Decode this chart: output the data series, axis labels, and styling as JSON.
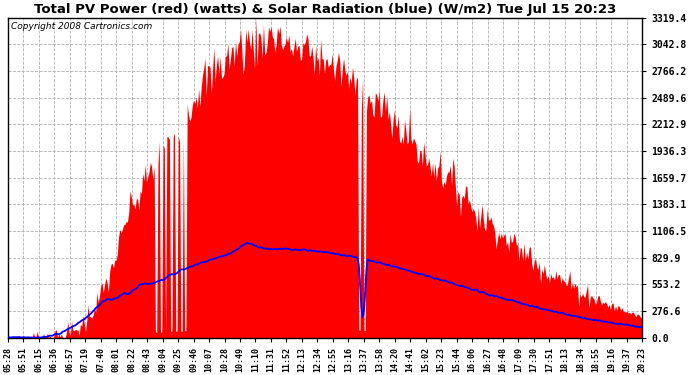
{
  "title": "Total PV Power (red) (watts) & Solar Radiation (blue) (W/m2) Tue Jul 15 20:23",
  "copyright": "Copyright 2008 Cartronics.com",
  "yticks": [
    0.0,
    276.6,
    553.2,
    829.9,
    1106.5,
    1383.1,
    1659.7,
    1936.3,
    2212.9,
    2489.6,
    2766.2,
    3042.8,
    3319.4
  ],
  "ymax": 3319.4,
  "bg_color": "#ffffff",
  "plot_bg_color": "#ffffff",
  "grid_color": "#b0b0b0",
  "red_fill_color": "#ff0000",
  "blue_line_color": "#0000ff",
  "xtick_labels": [
    "05:28",
    "05:51",
    "06:15",
    "06:36",
    "06:57",
    "07:19",
    "07:40",
    "08:01",
    "08:22",
    "08:43",
    "09:04",
    "09:25",
    "09:46",
    "10:07",
    "10:28",
    "10:49",
    "11:10",
    "11:31",
    "11:52",
    "12:13",
    "12:34",
    "12:55",
    "13:16",
    "13:37",
    "13:58",
    "14:20",
    "14:41",
    "15:02",
    "15:23",
    "15:44",
    "16:06",
    "16:27",
    "16:48",
    "17:09",
    "17:30",
    "17:51",
    "18:13",
    "18:34",
    "18:55",
    "19:16",
    "19:37",
    "20:23"
  ],
  "figwidth": 6.9,
  "figheight": 3.75,
  "dpi": 100
}
